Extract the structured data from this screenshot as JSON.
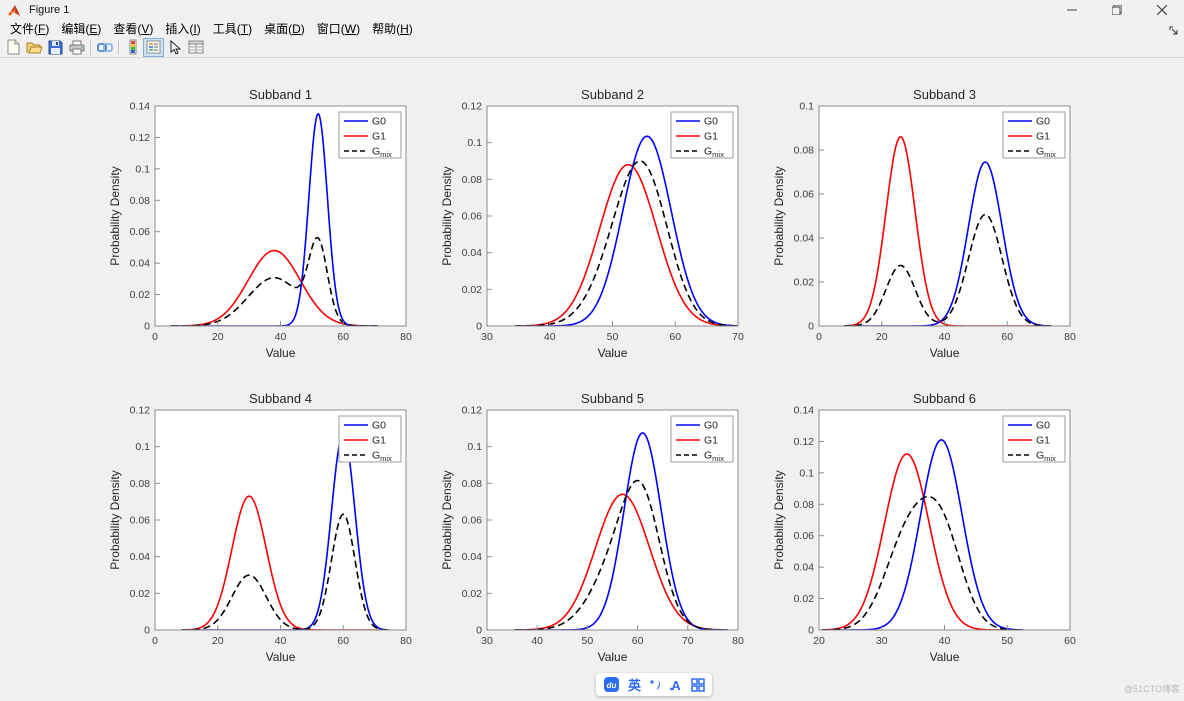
{
  "window": {
    "title": "Figure 1"
  },
  "menu": {
    "items": [
      {
        "name": "file",
        "label": "文件",
        "hotkey": "F"
      },
      {
        "name": "edit",
        "label": "编辑",
        "hotkey": "E"
      },
      {
        "name": "view",
        "label": "查看",
        "hotkey": "V"
      },
      {
        "name": "insert",
        "label": "插入",
        "hotkey": "I"
      },
      {
        "name": "tools",
        "label": "工具",
        "hotkey": "T"
      },
      {
        "name": "desktop",
        "label": "桌面",
        "hotkey": "D"
      },
      {
        "name": "window",
        "label": "窗口",
        "hotkey": "W"
      },
      {
        "name": "help",
        "label": "帮助",
        "hotkey": "H"
      }
    ]
  },
  "toolbar": {
    "buttons": [
      "new-figure",
      "open-file",
      "save-figure",
      "print-figure",
      "link-plot",
      "insert-colorbar",
      "insert-legend",
      "edit-plot",
      "property-inspector"
    ],
    "active_button": "insert-legend"
  },
  "chart_data": {
    "type": "line",
    "xlabel": "Value",
    "ylabel": "Probability Density",
    "colors": {
      "g0": "#0000ff",
      "g1": "#ff0000",
      "gmix": "#000000"
    },
    "legend": {
      "position": "northeast",
      "entries": [
        {
          "label": "G0",
          "sub": "",
          "color": "#0000ff",
          "dash": false
        },
        {
          "label": "G1",
          "sub": "",
          "color": "#ff0000",
          "dash": false
        },
        {
          "label": "G",
          "sub": "mix",
          "color": "#000000",
          "dash": true
        }
      ]
    },
    "subplots": [
      {
        "title": "Subband 1",
        "xlim": [
          0,
          80
        ],
        "ylim": [
          0,
          0.14
        ],
        "xticks": [
          0,
          20,
          40,
          60,
          80
        ],
        "xtick_labels": [
          "0",
          "20",
          "40",
          "60",
          "80"
        ],
        "yticks": [
          0,
          0.02,
          0.04,
          0.06,
          0.08,
          0.1,
          0.12,
          0.14
        ],
        "ytick_labels": [
          "0",
          "0.02",
          "0.04",
          "0.06",
          "0.08",
          "0.1",
          "0.12",
          "0.14"
        ],
        "xrange": [
          5,
          71
        ],
        "g0": {
          "mean": 52,
          "sigma": 2.96,
          "peak": 0.135
        },
        "g1": {
          "mean": 38,
          "sigma": 8.31,
          "peak": 0.048
        },
        "mix_weights": [
          0.36,
          0.64
        ]
      },
      {
        "title": "Subband 2",
        "xlim": [
          30,
          70
        ],
        "ylim": [
          0,
          0.12
        ],
        "xticks": [
          30,
          40,
          50,
          60,
          70
        ],
        "xtick_labels": [
          "30",
          "40",
          "50",
          "60",
          "70"
        ],
        "yticks": [
          0,
          0.02,
          0.04,
          0.06,
          0.08,
          0.1,
          0.12
        ],
        "ytick_labels": [
          "0",
          "0.02",
          "0.04",
          "0.06",
          "0.08",
          "0.1",
          "0.12"
        ],
        "xrange": [
          34.5,
          70.3
        ],
        "g0": {
          "mean": 55.5,
          "sigma": 3.86,
          "peak": 0.1035
        },
        "g1": {
          "mean": 52.5,
          "sigma": 4.53,
          "peak": 0.088
        },
        "mix_weights": [
          0.5,
          0.5
        ]
      },
      {
        "title": "Subband 3",
        "xlim": [
          0,
          80
        ],
        "ylim": [
          0,
          0.1
        ],
        "xticks": [
          0,
          20,
          40,
          60,
          80
        ],
        "xtick_labels": [
          "0",
          "20",
          "40",
          "60",
          "80"
        ],
        "yticks": [
          0,
          0.02,
          0.04,
          0.06,
          0.08,
          0.1
        ],
        "ytick_labels": [
          "0",
          "0.02",
          "0.04",
          "0.06",
          "0.08",
          "0.1"
        ],
        "xrange": [
          8,
          74
        ],
        "g0": {
          "mean": 53,
          "sigma": 5.36,
          "peak": 0.0745
        },
        "g1": {
          "mean": 26,
          "sigma": 4.64,
          "peak": 0.086
        },
        "mix_weights": [
          0.68,
          0.32
        ]
      },
      {
        "title": "Subband 4",
        "xlim": [
          0,
          80
        ],
        "ylim": [
          0,
          0.12
        ],
        "xticks": [
          0,
          20,
          40,
          60,
          80
        ],
        "xtick_labels": [
          "0",
          "20",
          "40",
          "60",
          "80"
        ],
        "yticks": [
          0,
          0.02,
          0.04,
          0.06,
          0.08,
          0.1,
          0.12
        ],
        "ytick_labels": [
          "0",
          "0.02",
          "0.04",
          "0.06",
          "0.08",
          "0.1",
          "0.12"
        ],
        "xrange": [
          8.5,
          74.5
        ],
        "g0": {
          "mean": 60,
          "sigma": 3.74,
          "peak": 0.107
        },
        "g1": {
          "mean": 30,
          "sigma": 5.47,
          "peak": 0.073
        },
        "mix_weights": [
          0.59,
          0.41
        ]
      },
      {
        "title": "Subband 5",
        "xlim": [
          30,
          80
        ],
        "ylim": [
          0,
          0.12
        ],
        "xticks": [
          30,
          40,
          50,
          60,
          70,
          80
        ],
        "xtick_labels": [
          "30",
          "40",
          "50",
          "60",
          "70",
          "80"
        ],
        "yticks": [
          0,
          0.02,
          0.04,
          0.06,
          0.08,
          0.1,
          0.12
        ],
        "ytick_labels": [
          "0",
          "0.02",
          "0.04",
          "0.06",
          "0.08",
          "0.1",
          "0.12"
        ],
        "xrange": [
          35.5,
          78
        ],
        "g0": {
          "mean": 61,
          "sigma": 3.71,
          "peak": 0.1075
        },
        "g1": {
          "mean": 57,
          "sigma": 5.39,
          "peak": 0.074
        },
        "mix_weights": [
          0.45,
          0.55
        ]
      },
      {
        "title": "Subband 6",
        "xlim": [
          20,
          60
        ],
        "ylim": [
          0,
          0.14
        ],
        "xticks": [
          20,
          30,
          40,
          50,
          60
        ],
        "xtick_labels": [
          "20",
          "30",
          "40",
          "50",
          "60"
        ],
        "yticks": [
          0,
          0.02,
          0.04,
          0.06,
          0.08,
          0.1,
          0.12,
          0.14
        ],
        "ytick_labels": [
          "0",
          "0.02",
          "0.04",
          "0.06",
          "0.08",
          "0.1",
          "0.12",
          "0.14"
        ],
        "xrange": [
          20.5,
          52.5
        ],
        "g0": {
          "mean": 39.5,
          "sigma": 3.3,
          "peak": 0.121
        },
        "g1": {
          "mean": 34,
          "sigma": 3.56,
          "peak": 0.112
        },
        "mix_weights": [
          0.5,
          0.5
        ]
      }
    ]
  },
  "ime_bar": {
    "mode_label": "英"
  },
  "watermark": {
    "text": "@51CTO博客"
  }
}
